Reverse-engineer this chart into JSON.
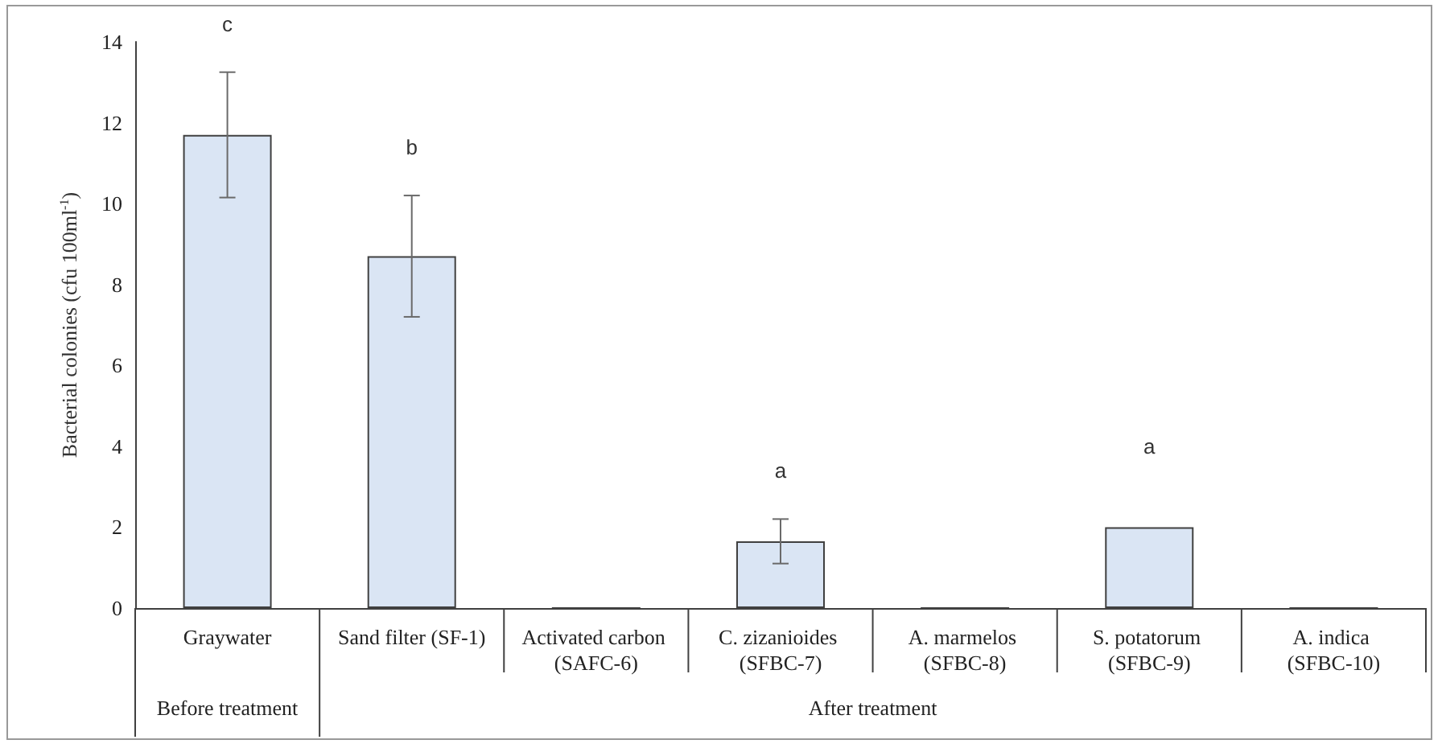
{
  "chart_data": {
    "type": "bar",
    "ylabel": "Bacterial colonies (cfu 100ml$^{-1}$)",
    "categories": [
      "Graywater",
      "Sand filter (SF-1)",
      "Activated carbon (SAFC-6)",
      "C. zizanioides (SFBC-7)",
      "A. marmelos (SFBC-8)",
      "S. potatorum (SFBC-9)",
      "A. indica (SFBC-10)"
    ],
    "values": [
      11.7,
      8.7,
      0,
      1.65,
      0,
      2.0,
      0
    ],
    "errors": [
      1.55,
      1.5,
      null,
      0.55,
      null,
      null,
      null
    ],
    "color": "#dae5f4",
    "ylim": [
      0,
      14
    ],
    "yticks": [
      0,
      2,
      4,
      6,
      8,
      10,
      12,
      14
    ],
    "grid": false,
    "annotations": [
      "c",
      "b",
      "a",
      "a",
      "Before treatment",
      "After treatment"
    ]
  }
}
